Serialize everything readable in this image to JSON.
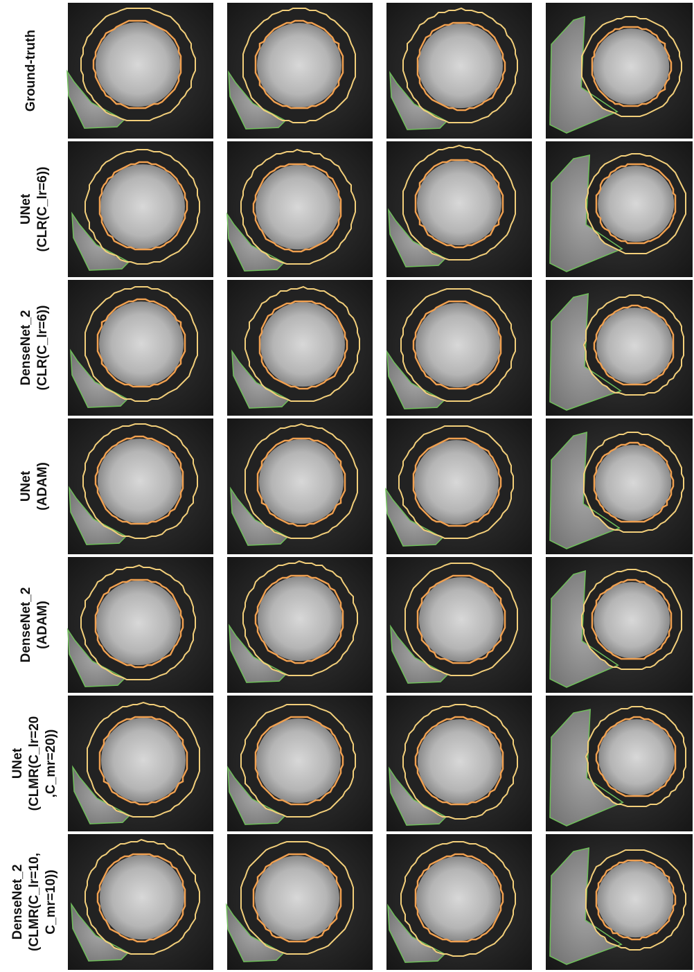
{
  "rows": [
    {
      "label_lines": [
        "Ground-truth"
      ]
    },
    {
      "label_lines": [
        "UNet",
        "(CLR(C_lr=6))"
      ]
    },
    {
      "label_lines": [
        "DenseNet_2",
        "(CLR(C_lr=6))"
      ]
    },
    {
      "label_lines": [
        "UNet",
        "(ADAM)"
      ]
    },
    {
      "label_lines": [
        "DenseNet_2",
        "(ADAM)"
      ]
    },
    {
      "label_lines": [
        "UNet",
        "(CLMR(C_lr=20",
        ",C_mr=20))"
      ]
    },
    {
      "label_lines": [
        "DenseNet_2",
        "(CLMR(C_lr=10,",
        "C_mr=10))"
      ]
    }
  ]
}
